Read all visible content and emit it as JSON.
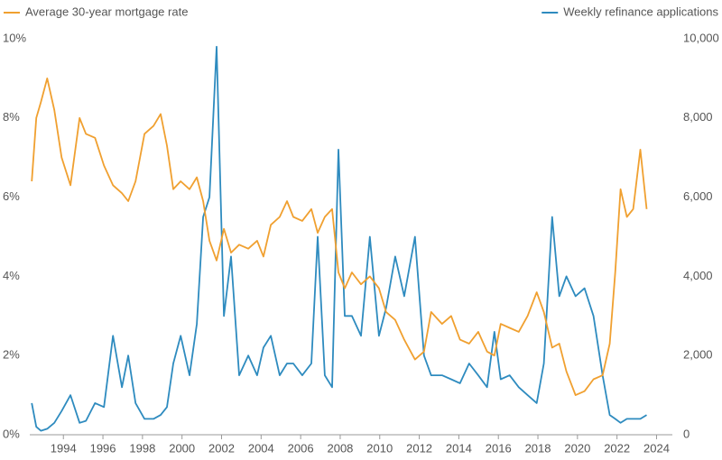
{
  "chart_data": {
    "type": "line",
    "x": [
      1992.4,
      1992.63,
      1992.86,
      1993.18,
      1993.54,
      1993.91,
      1994.36,
      1994.82,
      1995.14,
      1995.6,
      1996.05,
      1996.51,
      1996.96,
      1997.28,
      1997.65,
      1998.1,
      1998.56,
      1998.92,
      1999.24,
      1999.56,
      1999.93,
      2000.38,
      2000.75,
      2001.07,
      2001.39,
      2001.75,
      2002.12,
      2002.48,
      2002.89,
      2003.35,
      2003.8,
      2004.12,
      2004.49,
      2004.94,
      2005.31,
      2005.63,
      2006.08,
      2006.54,
      2006.86,
      2007.22,
      2007.59,
      2007.91,
      2008.23,
      2008.59,
      2009.05,
      2009.5,
      2009.96,
      2010.32,
      2010.78,
      2011.24,
      2011.78,
      2012.24,
      2012.6,
      2013.15,
      2013.61,
      2014.06,
      2014.52,
      2014.98,
      2015.43,
      2015.8,
      2016.12,
      2016.57,
      2017.03,
      2017.48,
      2017.94,
      2018.3,
      2018.72,
      2019.08,
      2019.44,
      2019.9,
      2020.36,
      2020.81,
      2021.27,
      2021.63,
      2021.91,
      2022.18,
      2022.5,
      2022.82,
      2023.18,
      2023.5
    ],
    "series": [
      {
        "name": "Average 30-year mortgage rate",
        "color": "#f0a030",
        "values": [
          6.4,
          8.0,
          8.4,
          9.0,
          8.2,
          7.0,
          6.3,
          8.0,
          7.6,
          7.5,
          6.8,
          6.3,
          6.1,
          5.9,
          6.4,
          7.6,
          7.8,
          8.1,
          7.3,
          6.2,
          6.4,
          6.2,
          6.5,
          5.9,
          4.9,
          4.4,
          5.2,
          4.6,
          4.8,
          4.7,
          4.9,
          4.5,
          5.3,
          5.5,
          5.9,
          5.5,
          5.4,
          5.7,
          5.1,
          5.5,
          5.7,
          4.1,
          3.7,
          4.1,
          3.8,
          4.0,
          3.7,
          3.1,
          2.9,
          2.4,
          1.9,
          2.1,
          3.1,
          2.8,
          3.0,
          2.4,
          2.3,
          2.6,
          2.1,
          2.0,
          2.8,
          2.7,
          2.6,
          3.0,
          3.6,
          3.1,
          2.2,
          2.3,
          1.6,
          1.0,
          1.1,
          1.4,
          1.5,
          2.3,
          4.1,
          6.2,
          5.5,
          5.7,
          7.2,
          5.7
        ]
      },
      {
        "name": "Weekly refinance applications",
        "color": "#2e8bbf",
        "axis": "y2",
        "values": [
          800,
          200,
          100,
          150,
          300,
          600,
          1000,
          300,
          350,
          800,
          700,
          2500,
          1200,
          2000,
          800,
          400,
          400,
          500,
          700,
          1800,
          2500,
          1500,
          2800,
          5500,
          6000,
          9800,
          3000,
          4500,
          1500,
          2000,
          1500,
          2200,
          2500,
          1500,
          1800,
          1800,
          1500,
          1800,
          5000,
          1500,
          1200,
          7200,
          3000,
          3000,
          2500,
          5000,
          2500,
          3200,
          4500,
          3500,
          5000,
          2000,
          1500,
          1500,
          1400,
          1300,
          1800,
          1500,
          1200,
          2600,
          1400,
          1500,
          1200,
          1000,
          800,
          1800,
          5500,
          3500,
          4000,
          3500,
          3700,
          3000,
          1500,
          500,
          400,
          300,
          400,
          400,
          400,
          500
        ]
      }
    ],
    "xlim": [
      1992.3,
      2024.8
    ],
    "xticks": [
      1994,
      1996,
      1998,
      2000,
      2002,
      2004,
      2006,
      2008,
      2010,
      2012,
      2014,
      2016,
      2018,
      2020,
      2022,
      2024
    ],
    "ylim": [
      0,
      10
    ],
    "yticks": [
      {
        "value": 0,
        "label": "0%"
      },
      {
        "value": 2,
        "label": "2%"
      },
      {
        "value": 4,
        "label": "4%"
      },
      {
        "value": 6,
        "label": "6%"
      },
      {
        "value": 8,
        "label": "8%"
      },
      {
        "value": 10,
        "label": "10%"
      }
    ],
    "y2lim": [
      0,
      10000
    ],
    "y2ticks": [
      0,
      {
        "value": 2000,
        "label": "2,000"
      },
      {
        "value": 4000,
        "label": "4,000"
      },
      {
        "value": 6000,
        "label": "6,000"
      },
      {
        "value": 8000,
        "label": "8,000"
      },
      {
        "value": 10000,
        "label": "10,000"
      }
    ]
  }
}
